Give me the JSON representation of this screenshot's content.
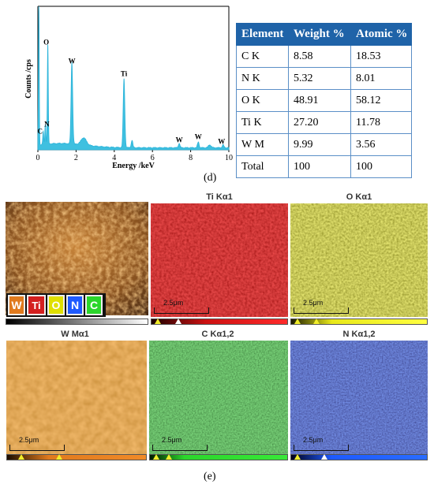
{
  "chart_data": {
    "type": "line",
    "xlabel": "Energy /keV",
    "ylabel": "Counts /cps",
    "xlim": [
      0,
      10
    ],
    "xticks": [
      "0",
      "2",
      "4",
      "6",
      "8",
      "10"
    ],
    "peaks": [
      {
        "label": "C",
        "energy": 0.28,
        "height": 0.09
      },
      {
        "label": "N",
        "energy": 0.39,
        "height": 0.14
      },
      {
        "label": "O",
        "energy": 0.52,
        "height": 0.7
      },
      {
        "label": "W",
        "energy": 1.78,
        "height": 0.57
      },
      {
        "label": "Ti",
        "energy": 4.51,
        "height": 0.48
      },
      {
        "label": "W",
        "energy": 7.4,
        "height": 0.03
      },
      {
        "label": "W",
        "energy": 8.4,
        "height": 0.04
      },
      {
        "label": "W",
        "energy": 9.7,
        "height": 0.02
      }
    ],
    "series_color": "#3fc0e0",
    "caption": "(d)"
  },
  "table": {
    "headers": [
      "Element",
      "Weight %",
      "Atomic %"
    ],
    "rows": [
      [
        "C K",
        "8.58",
        "18.53"
      ],
      [
        "N K",
        "5.32",
        "8.01"
      ],
      [
        "O K",
        "48.91",
        "58.12"
      ],
      [
        "Ti K",
        "27.20",
        "11.78"
      ],
      [
        "W M",
        "9.99",
        "3.56"
      ],
      [
        "Total",
        "100",
        "100"
      ]
    ],
    "header_color": "#1f63a8"
  },
  "maps": {
    "caption": "(e)",
    "legend": [
      "W",
      "Ti",
      "O",
      "N",
      "C"
    ],
    "legend_colors": [
      "#e07a1e",
      "#d42020",
      "#e0e000",
      "#1e5aff",
      "#2bd62b"
    ],
    "panels": [
      {
        "title": "",
        "scale": ""
      },
      {
        "title": "Ti Kα1",
        "scale": "2.5μm",
        "color": "#cc1111"
      },
      {
        "title": "O Kα1",
        "scale": "2.5μm",
        "color": "#d8d82a"
      },
      {
        "title": "W Mα1",
        "scale": "2.5μm",
        "color": "#e07a1e"
      },
      {
        "title": "C Kα1,2",
        "scale": "2.5μm",
        "color": "#2db52d"
      },
      {
        "title": "N Kα1,2",
        "scale": "2.5μm",
        "color": "#2a3fd8"
      }
    ]
  }
}
